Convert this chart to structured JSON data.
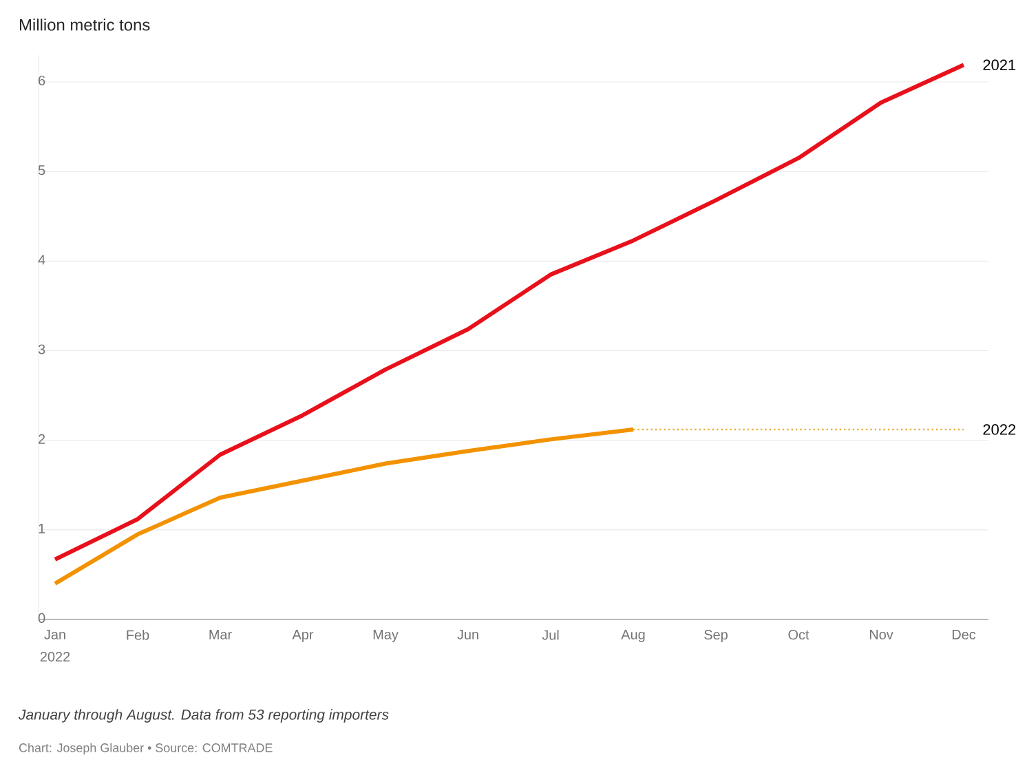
{
  "chart_data": {
    "type": "line",
    "ylabel": "Million metric tons",
    "categories": [
      "Jan",
      "Feb",
      "Mar",
      "Apr",
      "May",
      "Jun",
      "Jul",
      "Aug",
      "Sep",
      "Oct",
      "Nov",
      "Dec"
    ],
    "series": [
      {
        "name": "2021",
        "color": "#e8101a",
        "values": [
          0.67,
          1.12,
          1.84,
          2.28,
          2.79,
          3.24,
          3.85,
          4.23,
          4.68,
          5.15,
          5.77,
          6.19
        ]
      },
      {
        "name": "2022",
        "color": "#f39200",
        "values": [
          0.4,
          0.95,
          1.36,
          1.55,
          1.74,
          1.88,
          2.01,
          2.12,
          null,
          null,
          null,
          null
        ]
      },
      {
        "color": "#e8b040",
        "line_style": "dotted",
        "values": [
          null,
          null,
          null,
          null,
          null,
          null,
          null,
          2.12,
          2.12,
          2.12,
          2.12,
          2.12
        ]
      }
    ],
    "ylim": [
      0,
      6.3
    ],
    "yticks": [
      0,
      1,
      2,
      3,
      4,
      5,
      6
    ],
    "grid": "y",
    "legend": false,
    "marker": "none",
    "line_style": "solid",
    "annotations": [
      "2022",
      "January through August. Data from 53 reporting importers",
      "Chart: Joseph Glauber • Source: COMTRADE"
    ]
  }
}
